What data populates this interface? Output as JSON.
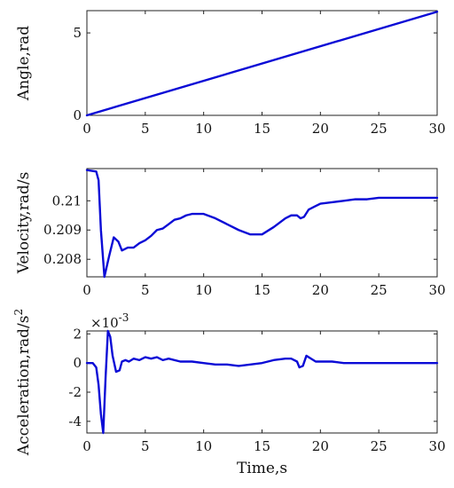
{
  "chart_data": [
    {
      "type": "line",
      "ylabel": "Angle,rad",
      "xlabel": "",
      "xlim": [
        0,
        30
      ],
      "ylim": [
        0,
        6.35
      ],
      "xticks": [
        0,
        5,
        10,
        15,
        20,
        25,
        30
      ],
      "yticks": [
        0,
        5
      ],
      "ytick_labels": [
        "0",
        "5"
      ],
      "grid": false,
      "series": [
        {
          "color": "#0b0bd6",
          "x": [
            0,
            30
          ],
          "y": [
            0,
            6.283
          ]
        }
      ]
    },
    {
      "type": "line",
      "ylabel": "Velocity,rad/s",
      "xlabel": "",
      "xlim": [
        0,
        30
      ],
      "ylim": [
        0.2074,
        0.2111
      ],
      "xticks": [
        0,
        5,
        10,
        15,
        20,
        25,
        30
      ],
      "yticks": [
        0.208,
        0.209,
        0.21
      ],
      "ytick_labels": [
        "0.208",
        "0.209",
        "0.21"
      ],
      "grid": false,
      "series": [
        {
          "color": "#0b0bd6",
          "x": [
            0,
            0.8,
            1.0,
            1.2,
            1.5,
            1.9,
            2.3,
            2.7,
            3.0,
            3.5,
            4.0,
            4.5,
            5.0,
            5.5,
            6.0,
            6.5,
            7.0,
            7.5,
            8.0,
            8.5,
            9.0,
            10.0,
            11.0,
            12.0,
            13.0,
            14.0,
            15.0,
            16.0,
            17.0,
            17.5,
            18.0,
            18.3,
            18.6,
            19.0,
            19.5,
            20.0,
            21.0,
            22.0,
            23.0,
            24.0,
            25.0,
            26.0,
            27.0,
            28.0,
            29.0,
            30.0
          ],
          "y": [
            0.21105,
            0.211,
            0.2107,
            0.209,
            0.2074,
            0.2081,
            0.20875,
            0.2086,
            0.2083,
            0.2084,
            0.2084,
            0.20855,
            0.20865,
            0.2088,
            0.209,
            0.20905,
            0.2092,
            0.20935,
            0.2094,
            0.2095,
            0.20955,
            0.20955,
            0.2094,
            0.2092,
            0.209,
            0.20885,
            0.20885,
            0.2091,
            0.2094,
            0.2095,
            0.2095,
            0.2094,
            0.20945,
            0.2097,
            0.2098,
            0.2099,
            0.20995,
            0.21,
            0.21005,
            0.21005,
            0.2101,
            0.2101,
            0.2101,
            0.2101,
            0.2101,
            0.2101
          ]
        }
      ]
    },
    {
      "type": "line",
      "ylabel": "Acceleration,rad/s",
      "ylabel_sup": "2",
      "xlabel": "Time,s",
      "xlim": [
        0,
        30
      ],
      "ylim": [
        -0.0048,
        0.0022
      ],
      "exponent_label": "×10",
      "exponent_sup": "-3",
      "xticks": [
        0,
        5,
        10,
        15,
        20,
        25,
        30
      ],
      "yticks": [
        -0.004,
        -0.002,
        0,
        0.002
      ],
      "ytick_labels": [
        "-4",
        "-2",
        "0",
        "2"
      ],
      "grid": false,
      "series": [
        {
          "color": "#0b0bd6",
          "x": [
            0,
            0.5,
            0.8,
            1.0,
            1.2,
            1.4,
            1.6,
            1.8,
            2.0,
            2.2,
            2.5,
            2.8,
            3.0,
            3.3,
            3.6,
            4.0,
            4.5,
            5.0,
            5.5,
            6.0,
            6.5,
            7.0,
            8.0,
            9.0,
            10.0,
            11.0,
            12.0,
            13.0,
            14.0,
            15.0,
            16.0,
            17.0,
            17.5,
            18.0,
            18.2,
            18.5,
            18.8,
            19.2,
            19.6,
            20.0,
            21.0,
            22.0,
            23.0,
            24.0,
            25.0,
            26.0,
            27.0,
            28.0,
            29.0,
            30.0
          ],
          "y": [
            0,
            0,
            -0.0003,
            -0.0015,
            -0.0035,
            -0.0048,
            -0.001,
            0.0022,
            0.0018,
            0.0005,
            -0.0006,
            -0.0005,
            0.0001,
            0.0002,
            0.0001,
            0.0003,
            0.0002,
            0.0004,
            0.0003,
            0.0004,
            0.0002,
            0.0003,
            0.0001,
            0.0001,
            0,
            -0.0001,
            -0.0001,
            -0.0002,
            -0.0001,
            0,
            0.0002,
            0.0003,
            0.0003,
            0.0001,
            -0.0003,
            -0.0002,
            0.0005,
            0.0003,
            0.0001,
            0.0001,
            0.0001,
            0,
            0,
            0,
            0,
            0,
            0,
            0,
            0,
            0
          ]
        }
      ]
    }
  ]
}
